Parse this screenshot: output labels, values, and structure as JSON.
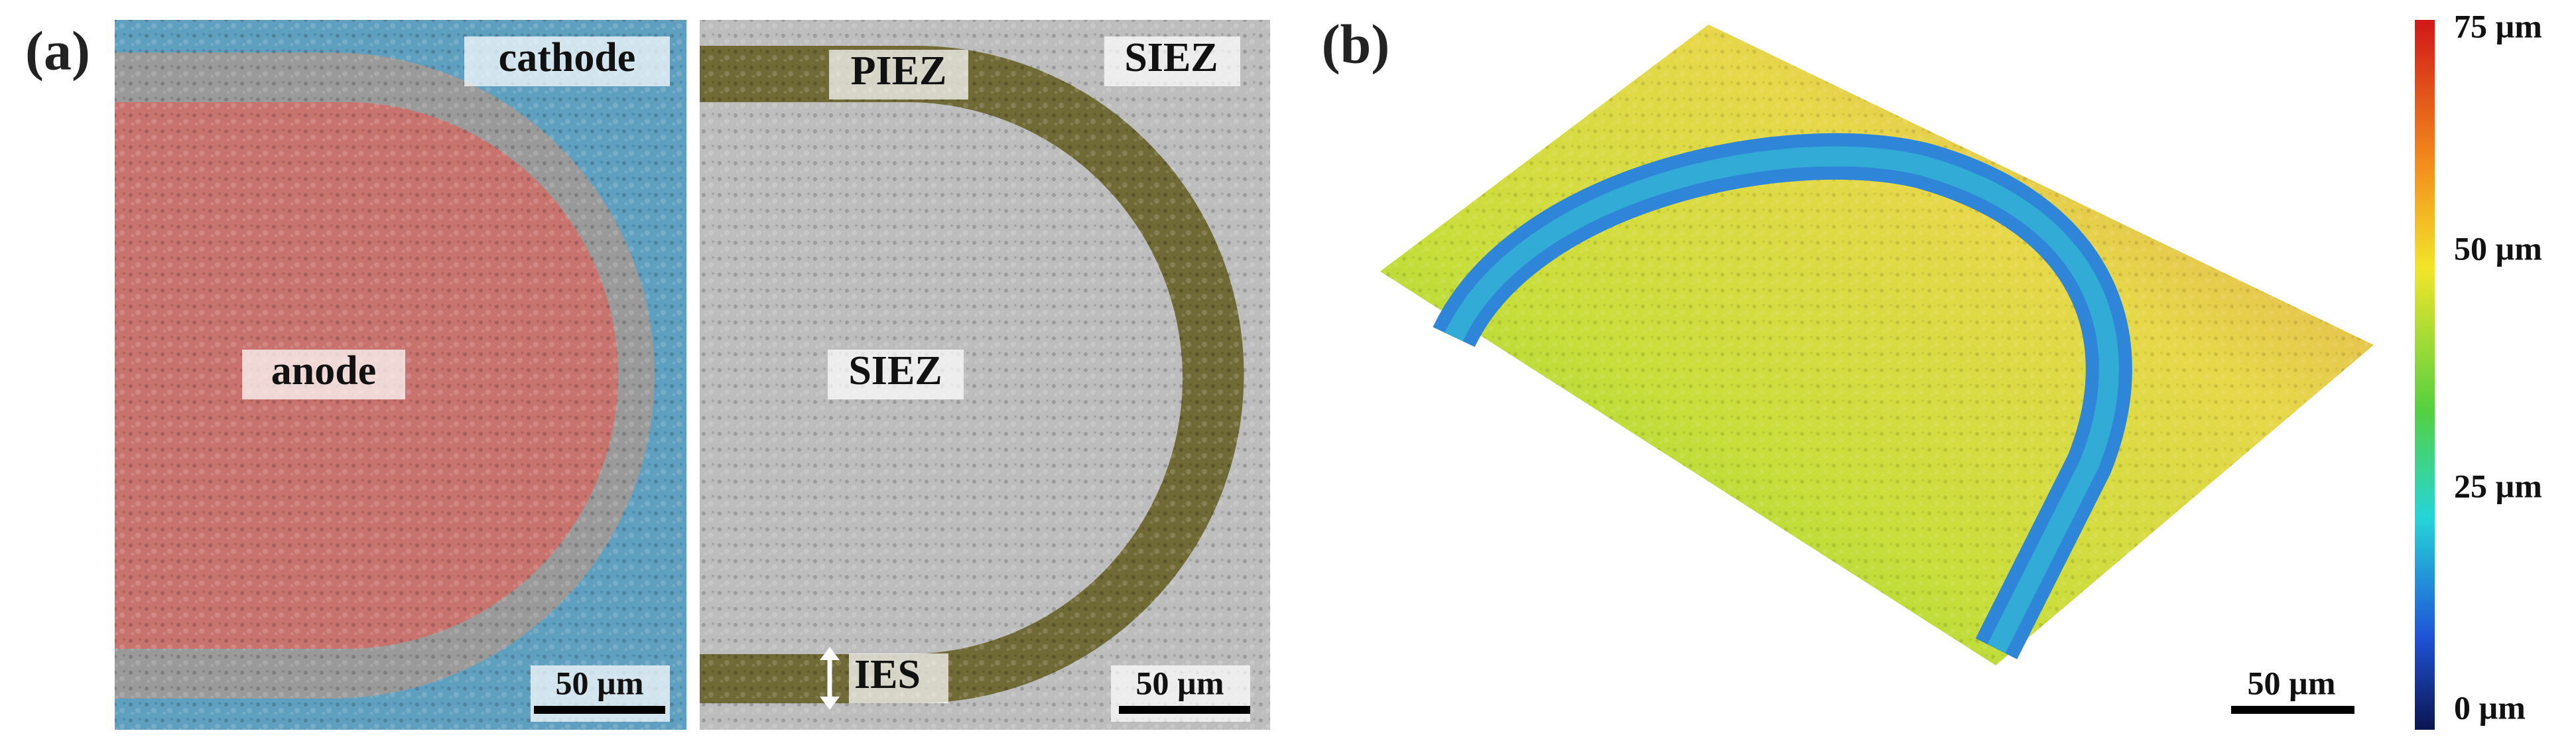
{
  "panel_a": {
    "label": "(a)",
    "left": {
      "cathode": "cathode",
      "anode": "anode",
      "scale_bar": "50 µm"
    },
    "right": {
      "piez": "PIEZ",
      "siez_top": "SIEZ",
      "siez_center": "SIEZ",
      "ies": "IES",
      "scale_bar": "50 µm"
    }
  },
  "panel_b": {
    "label": "(b)",
    "scale_bar": "50 µm",
    "colorbar": {
      "ticks": [
        "75 µm",
        "50 µm",
        "25 µm",
        "0 µm"
      ]
    }
  }
}
